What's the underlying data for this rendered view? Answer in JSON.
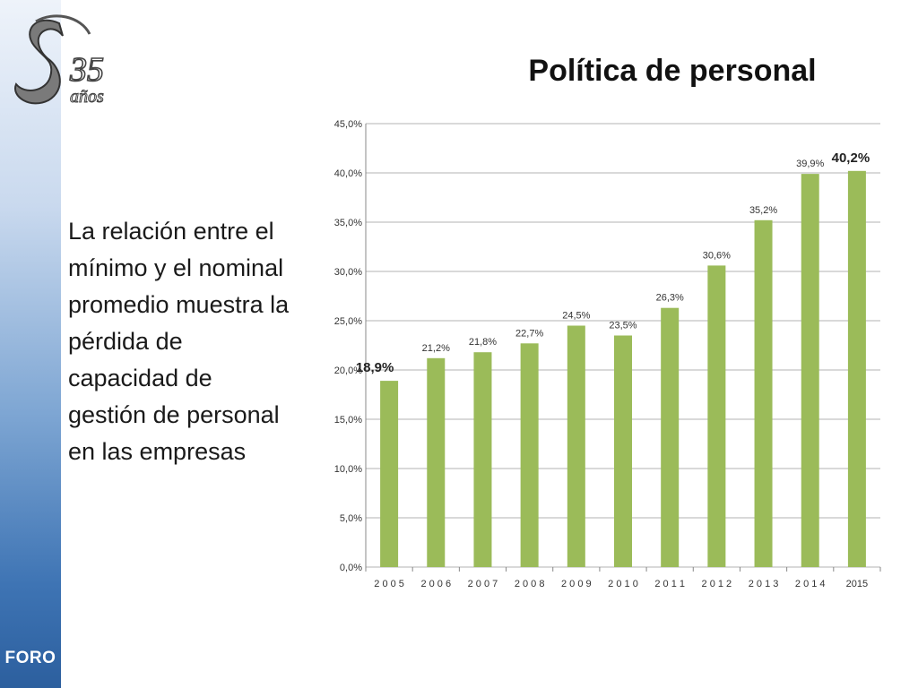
{
  "side": {
    "foro_label": "FORO"
  },
  "logo": {
    "number": "35",
    "word": "años"
  },
  "title": "Política de personal",
  "description": "La relación  entre el mínimo y el nominal promedio muestra la pérdida de capacidad de gestión de personal en las empresas",
  "colors": {
    "bar": "#9bbb59",
    "grid": "#b3b3b3",
    "side_top": "#eef3fa",
    "side_bottom": "#2c5f9e"
  },
  "chart_data": {
    "type": "bar",
    "title": "",
    "xlabel": "",
    "ylabel": "",
    "categories": [
      "2 0 0 5",
      "2 0 0 6",
      "2 0 0 7",
      "2 0 0 8",
      "2 0 0 9",
      "2 0 1 0",
      "2 0 1 1",
      "2 0 1 2",
      "2 0 1 3",
      "2 0 1 4",
      "2015"
    ],
    "values": [
      18.9,
      21.2,
      21.8,
      22.7,
      24.5,
      23.5,
      26.3,
      30.6,
      35.2,
      39.9,
      40.2
    ],
    "data_labels": [
      "18,9%",
      "21,2%",
      "21,8%",
      "22,7%",
      "24,5%",
      "23,5%",
      "26,3%",
      "30,6%",
      "35,2%",
      "39,9%",
      "40,2%"
    ],
    "highlighted_labels": [
      0,
      10
    ],
    "ylim": [
      0,
      45
    ],
    "yticks": [
      0,
      5,
      10,
      15,
      20,
      25,
      30,
      35,
      40,
      45
    ],
    "ytick_labels": [
      "0,0%",
      "5,0%",
      "10,0%",
      "15,0%",
      "20,0%",
      "25,0%",
      "30,0%",
      "35,0%",
      "40,0%",
      "45,0%"
    ],
    "grid": true,
    "legend": "none"
  }
}
